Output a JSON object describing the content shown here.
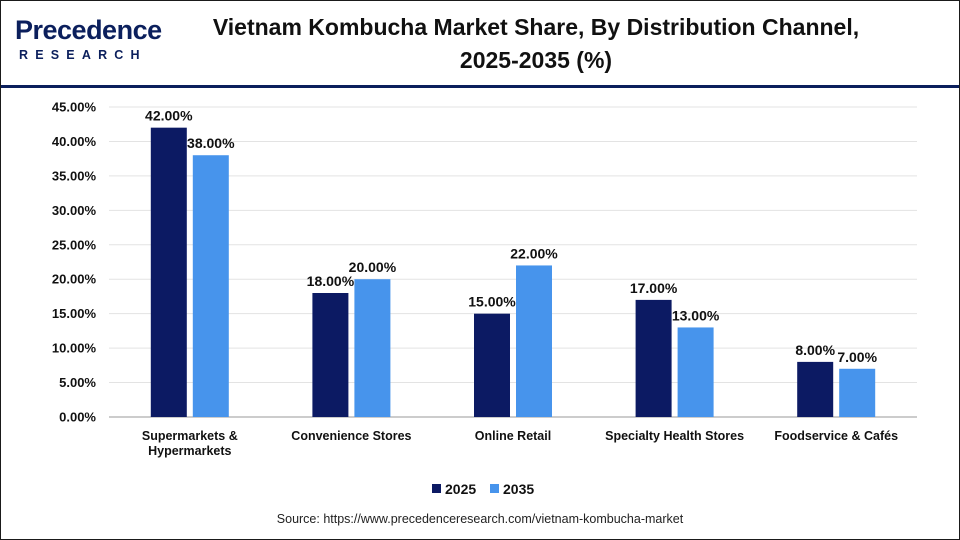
{
  "header": {
    "logo_main": "Precedence",
    "logo_sub": "RESEARCH",
    "title_line1": "Vietnam Kombucha Market Share, By Distribution Channel,",
    "title_line2": "2025-2035 (%)"
  },
  "source": "Source: https://www.precedenceresearch.com/vietnam-kombucha-market",
  "colors": {
    "series_2025": "#0c1a63",
    "series_2035": "#4794ec",
    "brand": "#0b1f5c"
  },
  "chart_data": {
    "type": "bar",
    "categories": [
      [
        "Supermarkets &",
        "Hypermarkets"
      ],
      [
        "Convenience Stores"
      ],
      [
        "Online Retail"
      ],
      [
        "Specialty Health Stores"
      ],
      [
        "Foodservice & Cafés"
      ]
    ],
    "series": [
      {
        "name": "2025",
        "values": [
          42,
          18,
          15,
          17,
          8
        ],
        "labels": [
          "42.00%",
          "18.00%",
          "15.00%",
          "17.00%",
          "8.00%"
        ]
      },
      {
        "name": "2035",
        "values": [
          38,
          20,
          22,
          13,
          7
        ],
        "labels": [
          "38.00%",
          "20.00%",
          "22.00%",
          "13.00%",
          "7.00%"
        ]
      }
    ],
    "y_ticks": [
      "0.00%",
      "5.00%",
      "10.00%",
      "15.00%",
      "20.00%",
      "25.00%",
      "30.00%",
      "35.00%",
      "40.00%",
      "45.00%"
    ],
    "ylim": [
      0,
      45
    ],
    "grid": true,
    "legend_position": "bottom"
  }
}
